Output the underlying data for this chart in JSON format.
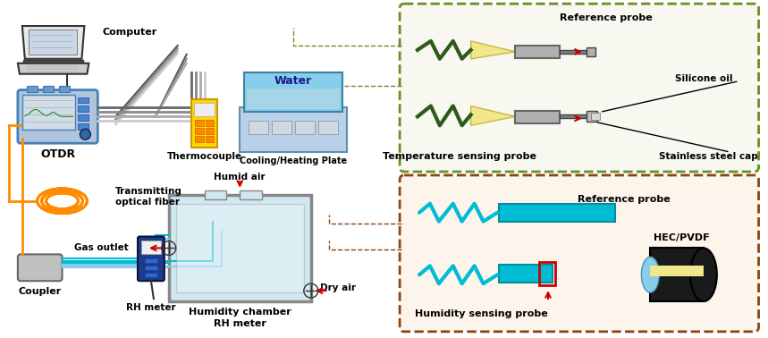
{
  "title": "",
  "background_color": "#ffffff",
  "labels": {
    "computer": "Computer",
    "otdr": "OTDR",
    "transmitting_optical_fiber": "Transmitting\noptical fiber",
    "coupler": "Coupler",
    "thermocouple": "Thermocouple",
    "cooling_heating_plate": "Cooling/Heating Plate",
    "water": "Water",
    "humid_air": "Humid air",
    "gas_outlet": "Gas outlet",
    "rh_meter1": "RH meter",
    "humidity_chamber": "Humidity chamber",
    "rh_meter2": "RH meter",
    "dry_air": "Dry air",
    "reference_probe_top": "Reference probe",
    "temperature_sensing_probe": "Temperature sensing probe",
    "silicone_oil": "Silicone oil",
    "stainless_steel_cap": "Stainless steel cap",
    "reference_probe_bottom": "Reference probe",
    "humidity_sensing_probe": "Humidity sensing probe",
    "hec_pvdf": "HEC/PVDF"
  },
  "colors": {
    "dashed_box_top": "#6b8e23",
    "dashed_box_bottom": "#8b4513",
    "fiber_orange": "#ff8c00",
    "fiber_cyan": "#00bcd4",
    "water_blue": "#87ceeb",
    "water_fill": "#add8e6",
    "coupler_gray": "#808080",
    "thermocouple_yellow": "#ffd700",
    "plate_blue": "#b0c4de",
    "arrow_red": "#cc0000",
    "probe_green_dark": "#2d5a1b",
    "probe_yellow": "#f0e68c",
    "probe_gray": "#a0a0a0",
    "rh_meter_blue": "#1e3a8a",
    "humidity_chamber_fill": "#d0e8f0",
    "humidity_chamber_border": "#808080",
    "black": "#000000",
    "otdr_blue": "#4682b4",
    "fiber_line_color": "#ff8c00",
    "line_color": "#555555"
  },
  "fig_width": 8.59,
  "fig_height": 3.78,
  "dpi": 100
}
